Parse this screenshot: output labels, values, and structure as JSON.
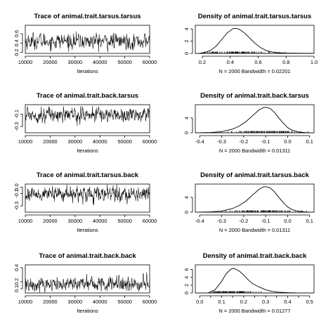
{
  "chart_data": [
    {
      "type": "line",
      "kind": "trace",
      "title": "Trace of animal.trait.tarsus.tarsus",
      "xlabel": "Iterations",
      "xlim": [
        10000,
        60000
      ],
      "ylim": [
        0.18,
        0.78
      ],
      "xticks": [
        10000,
        20000,
        30000,
        40000,
        50000,
        60000
      ],
      "yticks": [
        0.2,
        0.4,
        0.6
      ],
      "mean": 0.44,
      "sd": 0.085
    },
    {
      "type": "line",
      "kind": "density",
      "title": "Density of animal.trait.tarsus.tarsus",
      "caption": "N = 2000   Bandwidth = 0.02201",
      "xlim": [
        0.15,
        1.0
      ],
      "ylim": [
        0,
        4.6
      ],
      "xticks": [
        0.2,
        0.4,
        0.6,
        0.8,
        1.0
      ],
      "xtick_labels": [
        "0.2",
        "0.4",
        "0.6",
        "0.8",
        "1.0"
      ],
      "yticks": [
        0,
        2,
        4
      ],
      "x": [
        0.18,
        0.22,
        0.26,
        0.3,
        0.34,
        0.38,
        0.42,
        0.44,
        0.46,
        0.5,
        0.54,
        0.58,
        0.62,
        0.66,
        0.7,
        0.75,
        0.8,
        0.9,
        1.0
      ],
      "y": [
        0.02,
        0.15,
        0.5,
        1.2,
        2.3,
        3.4,
        4.05,
        4.1,
        4.0,
        3.4,
        2.5,
        1.6,
        0.9,
        0.45,
        0.22,
        0.1,
        0.05,
        0.02,
        0.01
      ],
      "rug_range": [
        0.2,
        0.98
      ]
    },
    {
      "type": "line",
      "kind": "trace",
      "title": "Trace of animal.trait.back.tarsus",
      "xlabel": "Iterations",
      "xlim": [
        10000,
        60000
      ],
      "ylim": [
        -0.4,
        0.05
      ],
      "xticks": [
        10000,
        20000,
        30000,
        40000,
        50000,
        60000
      ],
      "yticks": [
        -0.3,
        -0.1
      ],
      "mean": -0.11,
      "sd": 0.06
    },
    {
      "type": "line",
      "kind": "density",
      "title": "Density of animal.trait.back.tarsus",
      "caption": "N = 2000   Bandwidth = 0.01311",
      "xlim": [
        -0.42,
        0.12
      ],
      "ylim": [
        0,
        7.6
      ],
      "xticks": [
        -0.4,
        -0.3,
        -0.2,
        -0.1,
        0.0,
        0.1
      ],
      "xtick_labels": [
        "-0.4",
        "-0.3",
        "-0.2",
        "-0.1",
        "0.0",
        "0.1"
      ],
      "yticks": [
        0,
        4
      ],
      "x": [
        -0.4,
        -0.35,
        -0.3,
        -0.25,
        -0.22,
        -0.19,
        -0.16,
        -0.13,
        -0.11,
        -0.1,
        -0.08,
        -0.06,
        -0.04,
        -0.02,
        0.0,
        0.02,
        0.05,
        0.08,
        0.1
      ],
      "y": [
        0.02,
        0.08,
        0.3,
        1.0,
        1.8,
        3.0,
        4.6,
        6.2,
        6.8,
        6.9,
        6.6,
        5.5,
        4.0,
        2.6,
        1.4,
        0.7,
        0.2,
        0.05,
        0.02
      ],
      "rug_range": [
        -0.36,
        0.1
      ]
    },
    {
      "type": "line",
      "kind": "trace",
      "title": "Trace of animal.trait.tarsus.back",
      "xlabel": "Iterations",
      "xlim": [
        10000,
        60000
      ],
      "ylim": [
        -0.4,
        0.05
      ],
      "xticks": [
        10000,
        20000,
        30000,
        40000,
        50000,
        60000
      ],
      "yticks": [
        -0.3,
        -0.1,
        0.0
      ],
      "mean": -0.11,
      "sd": 0.06
    },
    {
      "type": "line",
      "kind": "density",
      "title": "Density of animal.trait.tarsus.back",
      "caption": "N = 2000   Bandwidth = 0.01311",
      "xlim": [
        -0.42,
        0.12
      ],
      "ylim": [
        0,
        7.6
      ],
      "xticks": [
        -0.4,
        -0.3,
        -0.2,
        -0.1,
        0.0,
        0.1
      ],
      "xtick_labels": [
        "-0.4",
        "-0.3",
        "-0.2",
        "-0.1",
        "0.0",
        "0.1"
      ],
      "yticks": [
        0,
        4
      ],
      "x": [
        -0.4,
        -0.35,
        -0.3,
        -0.25,
        -0.22,
        -0.19,
        -0.16,
        -0.13,
        -0.11,
        -0.1,
        -0.08,
        -0.06,
        -0.04,
        -0.02,
        0.0,
        0.02,
        0.05,
        0.08,
        0.1
      ],
      "y": [
        0.02,
        0.08,
        0.3,
        1.0,
        1.8,
        3.0,
        4.6,
        6.2,
        6.8,
        6.9,
        6.6,
        5.5,
        4.0,
        2.6,
        1.4,
        0.7,
        0.2,
        0.05,
        0.02
      ],
      "rug_range": [
        -0.36,
        0.1
      ]
    },
    {
      "type": "line",
      "kind": "trace",
      "title": "Trace of animal.trait.back.back",
      "xlabel": "Iterations",
      "xlim": [
        10000,
        60000
      ],
      "ylim": [
        0.04,
        0.44
      ],
      "xticks": [
        10000,
        20000,
        30000,
        40000,
        50000,
        60000
      ],
      "yticks": [
        0.1,
        0.2,
        0.4
      ],
      "mean": 0.17,
      "sd": 0.055
    },
    {
      "type": "line",
      "kind": "density",
      "title": "Density of animal.trait.back.back",
      "caption": "N = 2000   Bandwidth = 0.01277",
      "xlim": [
        -0.02,
        0.52
      ],
      "ylim": [
        0,
        7.2
      ],
      "xticks": [
        0.0,
        0.05,
        0.1,
        0.15,
        0.2,
        0.25,
        0.3,
        0.35,
        0.4,
        0.45,
        0.5
      ],
      "xtick_labels": [
        "0.0",
        "",
        "0.1",
        "",
        "0.2",
        "",
        "0.3",
        "",
        "0.4",
        "",
        "0.5"
      ],
      "yticks": [
        0,
        2,
        4,
        6
      ],
      "x": [
        0.04,
        0.07,
        0.1,
        0.12,
        0.14,
        0.15,
        0.16,
        0.18,
        0.2,
        0.22,
        0.24,
        0.26,
        0.28,
        0.3,
        0.33,
        0.36,
        0.4,
        0.44
      ],
      "y": [
        0.05,
        0.8,
        3.0,
        4.9,
        6.0,
        6.3,
        6.2,
        5.6,
        4.6,
        3.4,
        2.4,
        1.8,
        1.3,
        0.8,
        0.4,
        0.2,
        0.08,
        0.02
      ],
      "rug_range": [
        0.05,
        0.44
      ]
    }
  ]
}
